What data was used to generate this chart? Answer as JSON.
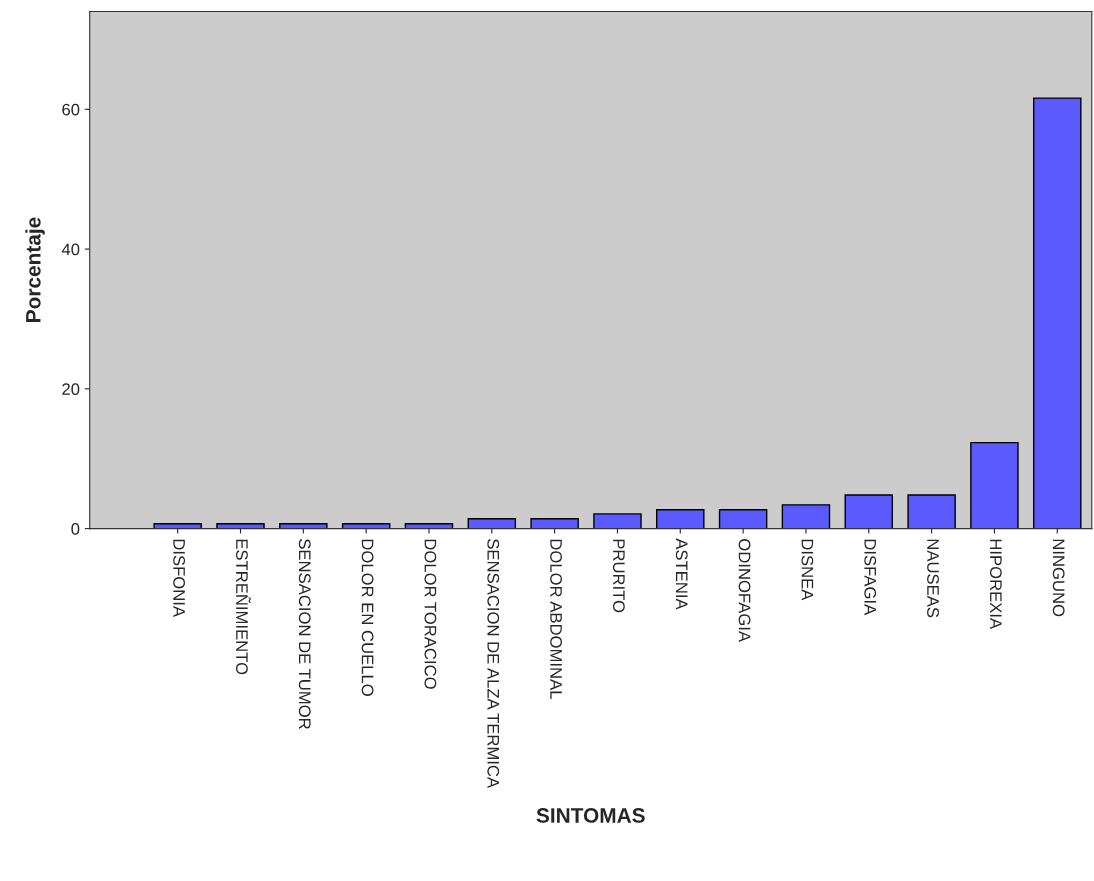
{
  "chart_data": {
    "type": "bar",
    "xlabel": "SINTOMAS",
    "ylabel": "Porcentaje",
    "categories": [
      "DISFONIA",
      "ESTREÑIMIENTO",
      "SENSACION DE TUMOR",
      "DOLOR EN CUELLO",
      "DOLOR TORACICO",
      "SENSACION DE ALZA TERMICA",
      "DOLOR ABDOMINAL",
      "PRURITO",
      "ASTENIA",
      "ODINOFAGIA",
      "DISNEA",
      "DISFAGIA",
      "NAUSEAS",
      "HIPOREXIA",
      "NINGUNO"
    ],
    "values": [
      0.7,
      0.7,
      0.7,
      0.7,
      0.7,
      1.4,
      1.4,
      2.1,
      2.7,
      2.7,
      3.4,
      4.8,
      4.8,
      12.3,
      61.6
    ],
    "color": "#5a5aff",
    "ylim": [
      0,
      74
    ],
    "yticks": [
      0,
      20,
      40,
      60
    ]
  }
}
